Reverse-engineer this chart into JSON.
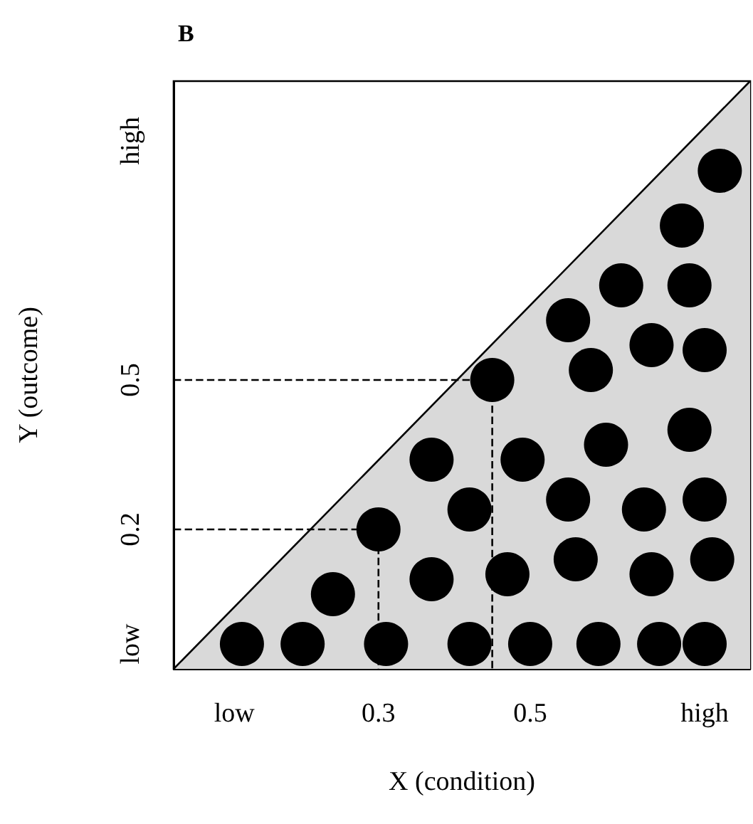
{
  "chart_data": {
    "type": "scatter",
    "title": "B",
    "xlabel": "X (condition)",
    "ylabel": "Y (outcome)",
    "xlim": [
      0.03,
      0.79
    ],
    "ylim": [
      -0.08,
      1.1
    ],
    "xticks": [
      {
        "value": 0.11,
        "label": "low"
      },
      0.3,
      0.5,
      {
        "value": 0.73,
        "label": "high"
      }
    ],
    "yticks": [
      {
        "value": -0.03,
        "label": "low"
      },
      0.2,
      0.5,
      {
        "value": 0.98,
        "label": "high"
      }
    ],
    "marker": "circle",
    "series": [
      {
        "type": "area",
        "color": "#d9d9d9",
        "line_style": "solid",
        "marker": "none",
        "x": [
          0.03,
          0.79
        ],
        "values": [
          -0.08,
          1.1
        ]
      },
      {
        "type": "line",
        "color": "#000000",
        "line_style": "dashed",
        "marker": "none",
        "x": [
          0.03,
          0.3,
          0.3
        ],
        "values": [
          0.2,
          0.2,
          -0.08
        ]
      },
      {
        "type": "line",
        "color": "#000000",
        "line_style": "dashed",
        "marker": "none",
        "x": [
          0.03,
          0.45,
          0.45
        ],
        "values": [
          0.5,
          0.5,
          -0.08
        ]
      },
      {
        "color": "#000000",
        "x": [
          0.12,
          0.2,
          0.31,
          0.42,
          0.5,
          0.59,
          0.67,
          0.73,
          0.24,
          0.3,
          0.37,
          0.37,
          0.42,
          0.45,
          0.47,
          0.49,
          0.55,
          0.56,
          0.55,
          0.58,
          0.6,
          0.62,
          0.65,
          0.66,
          0.66,
          0.7,
          0.71,
          0.73,
          0.71,
          0.73,
          0.74,
          0.75
        ],
        "values": [
          -0.03,
          -0.03,
          -0.03,
          -0.03,
          -0.03,
          -0.03,
          -0.03,
          -0.03,
          0.07,
          0.2,
          0.1,
          0.34,
          0.24,
          0.5,
          0.11,
          0.34,
          0.26,
          0.14,
          0.62,
          0.52,
          0.37,
          0.69,
          0.24,
          0.11,
          0.57,
          0.81,
          0.69,
          0.56,
          0.4,
          0.26,
          0.14,
          0.92
        ]
      }
    ]
  }
}
